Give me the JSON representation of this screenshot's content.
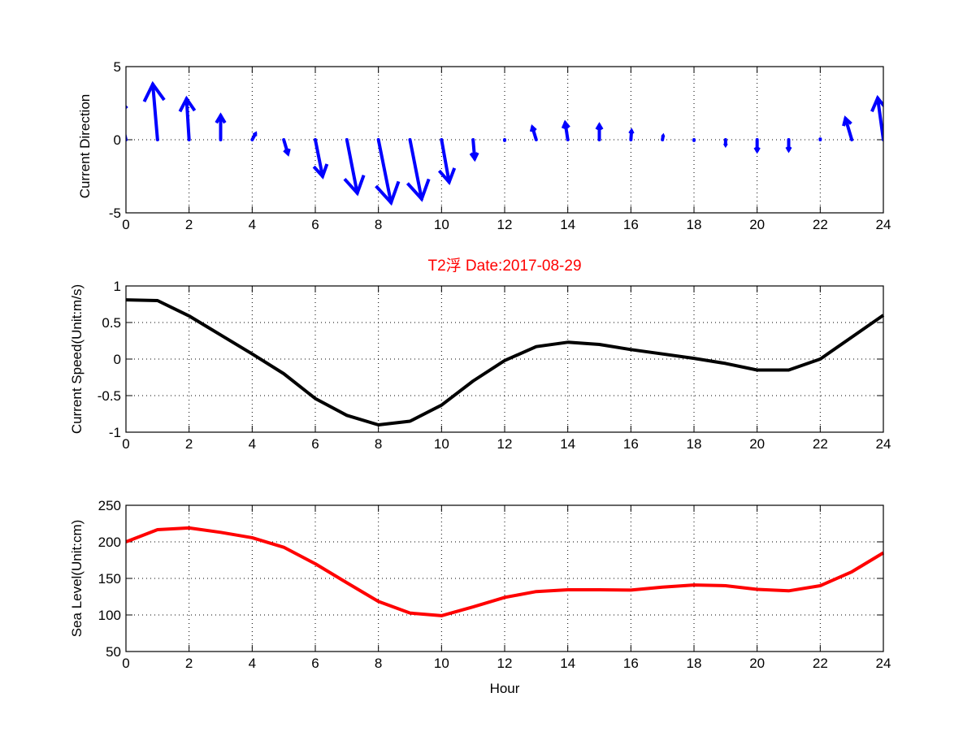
{
  "chart_data": [
    {
      "type": "quiver",
      "ylabel": "Current Direction",
      "xlabel": "",
      "xlim": [
        0,
        24
      ],
      "ylim": [
        -5,
        5
      ],
      "xticks": [
        "0",
        "2",
        "4",
        "6",
        "8",
        "10",
        "12",
        "14",
        "16",
        "18",
        "20",
        "22",
        "24"
      ],
      "yticks": [
        "-5",
        "0",
        "5"
      ],
      "ytick_values": [
        -5,
        0,
        5
      ],
      "grid": true,
      "color": "#0000ff",
      "x": [
        0,
        1,
        2,
        3,
        4,
        5,
        6,
        7,
        8,
        9,
        10,
        11,
        12,
        13,
        14,
        15,
        16,
        17,
        18,
        19,
        20,
        21,
        22,
        23,
        24
      ],
      "u": [
        -0.3,
        -0.15,
        -0.08,
        0,
        0.1,
        0.13,
        0.23,
        0.33,
        0.4,
        0.37,
        0.24,
        0.05,
        0,
        -0.12,
        -0.08,
        0,
        0.02,
        0.02,
        0,
        0,
        0,
        0,
        0,
        -0.2,
        -0.18
      ],
      "v": [
        2.9,
        3.8,
        2.8,
        1.65,
        0.4,
        -0.95,
        -2.5,
        -3.65,
        -4.3,
        -4.05,
        -2.9,
        -1.3,
        -0.05,
        0.85,
        1.15,
        1.0,
        0.6,
        0.25,
        -0.05,
        -0.35,
        -0.75,
        -0.7,
        0.05,
        1.45,
        2.85
      ]
    },
    {
      "type": "line",
      "title": "T2浮   Date:2017-08-29",
      "title_color": "#ff0000",
      "ylabel": "Current Speed(Unit:m/s)",
      "xlabel": "",
      "xlim": [
        0,
        24
      ],
      "ylim": [
        -1,
        1
      ],
      "xticks": [
        "0",
        "2",
        "4",
        "6",
        "8",
        "10",
        "12",
        "14",
        "16",
        "18",
        "20",
        "22",
        "24"
      ],
      "yticks": [
        "-1",
        "-0.5",
        "0",
        "0.5",
        "1"
      ],
      "ytick_values": [
        -1,
        -0.5,
        0,
        0.5,
        1
      ],
      "grid": true,
      "color": "#000000",
      "x": [
        0,
        1,
        2,
        3,
        4,
        5,
        6,
        7,
        8,
        9,
        10,
        11,
        12,
        13,
        14,
        15,
        16,
        17,
        18,
        19,
        20,
        21,
        22,
        23,
        24
      ],
      "y": [
        0.81,
        0.8,
        0.59,
        0.33,
        0.07,
        -0.2,
        -0.54,
        -0.77,
        -0.9,
        -0.85,
        -0.63,
        -0.3,
        -0.02,
        0.17,
        0.23,
        0.2,
        0.13,
        0.07,
        0.01,
        -0.06,
        -0.15,
        -0.15,
        0,
        0.3,
        0.6
      ]
    },
    {
      "type": "line",
      "ylabel": "Sea Level(Unit:cm)",
      "xlabel": "Hour",
      "xlim": [
        0,
        24
      ],
      "ylim": [
        50,
        250
      ],
      "xticks": [
        "0",
        "2",
        "4",
        "6",
        "8",
        "10",
        "12",
        "14",
        "16",
        "18",
        "20",
        "22",
        "24"
      ],
      "yticks": [
        "50",
        "100",
        "150",
        "200",
        "250"
      ],
      "ytick_values": [
        50,
        100,
        150,
        200,
        250
      ],
      "grid": true,
      "color": "#ff0000",
      "x": [
        0,
        1,
        2,
        3,
        4,
        5,
        6,
        7,
        8,
        9,
        10,
        11,
        12,
        13,
        14,
        15,
        16,
        17,
        18,
        19,
        20,
        21,
        22,
        23,
        24
      ],
      "y": [
        200,
        216.7,
        219,
        213,
        205.6,
        192.6,
        170,
        144,
        118.5,
        102.6,
        99,
        111,
        124,
        132,
        134.4,
        134.4,
        134,
        138,
        141,
        140,
        135,
        133,
        140,
        159,
        185
      ]
    }
  ]
}
